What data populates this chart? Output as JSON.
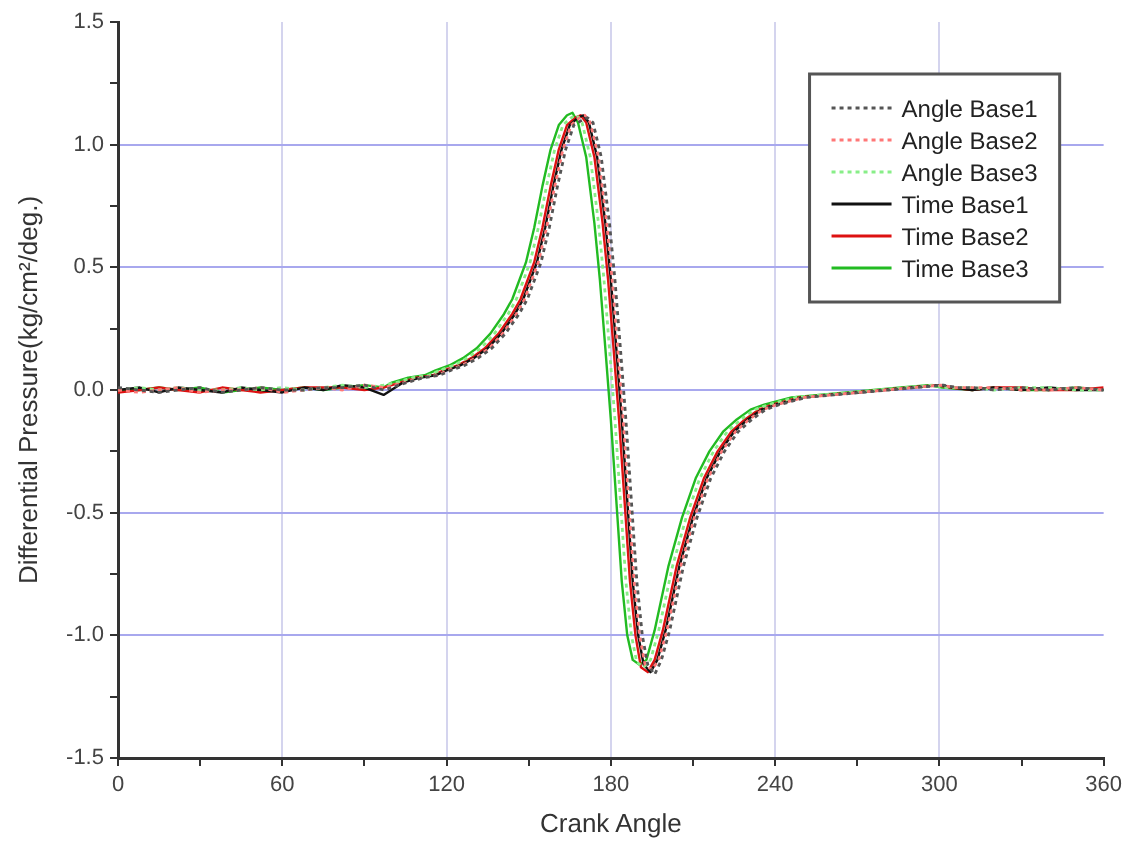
{
  "chart_data": {
    "type": "line",
    "xlabel": "Crank Angle",
    "ylabel": "Differential Pressure(kg/cm²/deg.)",
    "xlim": [
      0,
      360
    ],
    "ylim": [
      -1.5,
      1.5
    ],
    "xticks": [
      0,
      {
        "value": 30,
        "label": null
      },
      60,
      {
        "value": 90,
        "label": null
      },
      120,
      {
        "value": 150,
        "label": null
      },
      180,
      {
        "value": 210,
        "label": null
      },
      240,
      {
        "value": 270,
        "label": null
      },
      300,
      {
        "value": 330,
        "label": null
      },
      360
    ],
    "yticks": [
      -1.5,
      {
        "value": -1.25,
        "label": null
      },
      {
        "value": -1,
        "label": "-1.0"
      },
      {
        "value": -0.75,
        "label": null
      },
      -0.5,
      {
        "value": -0.25,
        "label": null
      },
      {
        "value": 0,
        "label": "0.0"
      },
      {
        "value": 0.25,
        "label": null
      },
      0.5,
      {
        "value": 0.75,
        "label": null
      },
      {
        "value": 1,
        "label": "1.0"
      },
      {
        "value": 1.25,
        "label": null
      },
      1.5
    ],
    "grid": true,
    "legend": "top right",
    "marker": "none",
    "series": [
      {
        "name": "Angle Base1",
        "color": "#555555",
        "line_style": "dotted",
        "x": [
          0,
          8,
          15,
          22,
          30,
          38,
          45,
          52,
          60,
          68,
          75,
          82,
          90,
          97,
          105.5,
          111.5,
          117.5,
          121.5,
          126.5,
          131.5,
          136.5,
          141.5,
          146.5,
          149.5,
          151.5,
          154.5,
          157.5,
          160.5,
          163.5,
          166.5,
          169.5,
          171.5,
          173.5,
          176.5,
          179.5,
          181.5,
          183.5,
          185.5,
          187.5,
          189.5,
          191.5,
          193.5,
          196,
          198.5,
          201.5,
          206.5,
          211.5,
          216.5,
          221.5,
          226.5,
          231.5,
          236.5,
          241.5,
          251.5,
          261.5,
          271.5,
          281.5,
          291.5,
          301.5,
          306.5,
          312,
          320,
          330,
          340,
          350,
          360
        ],
        "values": [
          0.01,
          0,
          -0.01,
          0,
          0.01,
          -0.01,
          0,
          0.01,
          0,
          0,
          0.01,
          0.01,
          0.02,
          0,
          0.03,
          0.05,
          0.06,
          0.08,
          0.1,
          0.13,
          0.17,
          0.23,
          0.31,
          0.37,
          0.43,
          0.52,
          0.66,
          0.83,
          0.98,
          1.08,
          1.1,
          1.11,
          1.09,
          0.95,
          0.68,
          0.45,
          0.17,
          -0.12,
          -0.45,
          -0.78,
          -1,
          -1.12,
          -1.16,
          -1.1,
          -0.98,
          -0.72,
          -0.52,
          -0.36,
          -0.25,
          -0.17,
          -0.12,
          -0.08,
          -0.06,
          -0.03,
          -0.02,
          -0.01,
          0,
          0.01,
          0.02,
          0.01,
          0.01,
          0,
          0.01,
          0,
          0.01,
          0
        ]
      },
      {
        "name": "Angle Base2",
        "color": "#ff7777",
        "line_style": "dotted",
        "x": [
          0,
          8,
          15,
          22,
          30,
          38,
          45,
          52,
          60,
          68,
          75,
          82,
          90,
          97,
          104.5,
          110.5,
          116.5,
          120.5,
          125.5,
          130.5,
          135.5,
          140.5,
          145.5,
          148.5,
          150.5,
          153.5,
          156.5,
          159.5,
          162.5,
          165.5,
          168.5,
          170.5,
          172.5,
          175.5,
          178.5,
          180.5,
          182.5,
          184.5,
          186.5,
          188.5,
          190.5,
          192.5,
          195,
          197.5,
          200.5,
          205.5,
          210.5,
          215.5,
          220.5,
          225.5,
          230.5,
          235.5,
          240.5,
          250.5,
          260.5,
          270.5,
          280.5,
          290.5,
          300.5,
          305.5,
          312,
          320,
          330,
          340,
          350,
          360
        ],
        "values": [
          0,
          -0.01,
          0,
          0.01,
          -0.01,
          0,
          0,
          0.01,
          -0.01,
          0,
          0.01,
          0,
          0.02,
          0.01,
          0.03,
          0.05,
          0.06,
          0.08,
          0.1,
          0.13,
          0.17,
          0.23,
          0.31,
          0.37,
          0.43,
          0.52,
          0.66,
          0.83,
          0.98,
          1.08,
          1.11,
          1.12,
          1.09,
          0.95,
          0.68,
          0.45,
          0.17,
          -0.12,
          -0.45,
          -0.78,
          -1,
          -1.12,
          -1.14,
          -1.1,
          -0.98,
          -0.72,
          -0.52,
          -0.36,
          -0.25,
          -0.17,
          -0.12,
          -0.08,
          -0.06,
          -0.03,
          -0.02,
          -0.01,
          0,
          0.01,
          0.02,
          0.01,
          0.01,
          0.01,
          0,
          0,
          0.01,
          0
        ]
      },
      {
        "name": "Angle Base3",
        "color": "#88ee88",
        "line_style": "dotted",
        "x": [
          0,
          8,
          15,
          22,
          30,
          38,
          45,
          52,
          60,
          68,
          75,
          82,
          90,
          97,
          101.5,
          107.5,
          113.5,
          117.5,
          122.5,
          127.5,
          132.5,
          137.5,
          142.5,
          145.5,
          147.5,
          150.5,
          153.5,
          156.5,
          159.5,
          162.5,
          165.5,
          167.5,
          169.5,
          172.5,
          175.5,
          177.5,
          179.5,
          181.5,
          183.5,
          185.5,
          187.5,
          189.5,
          192,
          194.5,
          197.5,
          202.5,
          207.5,
          212.5,
          217.5,
          222.5,
          227.5,
          232.5,
          237.5,
          247.5,
          257.5,
          267.5,
          277.5,
          287.5,
          297.5,
          302.5,
          312,
          320,
          330,
          340,
          350,
          360
        ],
        "values": [
          0,
          0.01,
          0,
          0.01,
          0,
          0,
          0.01,
          0,
          0.01,
          0,
          0.01,
          0.02,
          0.01,
          0.02,
          0.03,
          0.05,
          0.06,
          0.08,
          0.1,
          0.13,
          0.17,
          0.23,
          0.31,
          0.37,
          0.43,
          0.52,
          0.66,
          0.83,
          0.98,
          1.08,
          1.11,
          1.12,
          1.09,
          0.95,
          0.68,
          0.45,
          0.17,
          -0.12,
          -0.45,
          -0.78,
          -1,
          -1.11,
          -1.13,
          -1.1,
          -0.98,
          -0.72,
          -0.52,
          -0.36,
          -0.25,
          -0.17,
          -0.12,
          -0.08,
          -0.06,
          -0.03,
          -0.02,
          -0.01,
          0,
          0.01,
          0.02,
          0.01,
          0.01,
          0,
          0.01,
          0.01,
          0,
          0
        ]
      },
      {
        "name": "Time Base1",
        "color": "#111111",
        "line_style": "solid",
        "x": [
          0,
          8,
          15,
          22,
          30,
          38,
          45,
          52,
          60,
          68,
          75,
          82,
          90,
          97,
          104,
          110,
          116,
          120,
          125,
          130,
          135,
          140,
          145,
          148,
          150,
          153,
          156,
          159,
          162,
          165,
          168,
          170,
          172,
          175,
          178,
          180,
          182,
          184,
          186,
          188,
          190,
          192,
          194.5,
          197,
          200,
          205,
          210,
          215,
          220,
          225,
          230,
          235,
          240,
          250,
          260,
          270,
          280,
          290,
          300,
          305,
          312,
          320,
          330,
          340,
          350,
          360
        ],
        "values": [
          0,
          0.01,
          -0.01,
          0.01,
          0,
          -0.01,
          0.01,
          0,
          -0.01,
          0.01,
          0,
          0.02,
          0.01,
          -0.02,
          0.03,
          0.05,
          0.06,
          0.08,
          0.1,
          0.13,
          0.17,
          0.23,
          0.31,
          0.37,
          0.43,
          0.52,
          0.66,
          0.83,
          0.98,
          1.08,
          1.11,
          1.12,
          1.09,
          0.95,
          0.68,
          0.45,
          0.17,
          -0.12,
          -0.45,
          -0.78,
          -1,
          -1.12,
          -1.15,
          -1.1,
          -0.98,
          -0.72,
          -0.52,
          -0.36,
          -0.25,
          -0.17,
          -0.12,
          -0.08,
          -0.06,
          -0.03,
          -0.02,
          -0.01,
          0,
          0.01,
          0.02,
          0.01,
          0,
          0.01,
          0,
          0.01,
          0,
          0
        ]
      },
      {
        "name": "Time Base2",
        "color": "#dd1111",
        "line_style": "solid",
        "x": [
          0,
          8,
          15,
          22,
          30,
          38,
          45,
          52,
          60,
          68,
          75,
          82,
          90,
          97,
          103,
          109,
          115,
          119,
          124,
          129,
          134,
          139,
          144,
          147,
          149,
          152,
          155,
          158,
          161,
          164,
          167,
          169,
          171,
          174,
          177,
          179,
          181,
          183,
          185,
          187,
          189,
          191,
          193.5,
          196,
          199,
          204,
          209,
          214,
          219,
          224,
          229,
          234,
          239,
          249,
          259,
          269,
          279,
          289,
          299,
          304,
          312,
          320,
          330,
          340,
          350,
          360
        ],
        "values": [
          -0.01,
          0,
          0.01,
          0,
          -0.01,
          0.01,
          0,
          -0.01,
          0,
          0.01,
          0.01,
          0.01,
          0,
          0.01,
          0.03,
          0.05,
          0.06,
          0.08,
          0.1,
          0.13,
          0.17,
          0.23,
          0.31,
          0.37,
          0.43,
          0.52,
          0.66,
          0.83,
          0.98,
          1.08,
          1.11,
          1.12,
          1.09,
          0.95,
          0.68,
          0.45,
          0.17,
          -0.12,
          -0.45,
          -0.78,
          -1,
          -1.13,
          -1.15,
          -1.1,
          -0.98,
          -0.72,
          -0.52,
          -0.36,
          -0.25,
          -0.17,
          -0.12,
          -0.08,
          -0.06,
          -0.03,
          -0.02,
          -0.01,
          0,
          0.01,
          0.02,
          0.01,
          0,
          0.01,
          0.01,
          0,
          0,
          0.01
        ]
      },
      {
        "name": "Time Base3",
        "color": "#22bb22",
        "line_style": "solid",
        "x": [
          0,
          8,
          15,
          22,
          30,
          38,
          45,
          52,
          60,
          68,
          75,
          82,
          90,
          97,
          100,
          106,
          112,
          116,
          121,
          126,
          131,
          136,
          141,
          144,
          146,
          149,
          152,
          155,
          158,
          161,
          164,
          166,
          168,
          171,
          174,
          176,
          178,
          180,
          182,
          184,
          186,
          188,
          190.5,
          193,
          196,
          201,
          206,
          211,
          216,
          221,
          226,
          231,
          236,
          246,
          256,
          266,
          276,
          286,
          296,
          301,
          312,
          320,
          330,
          340,
          350,
          360
        ],
        "values": [
          0,
          0,
          0.01,
          0,
          0.01,
          -0.01,
          0,
          0.01,
          0,
          0.01,
          0,
          0.01,
          0.02,
          0.01,
          0.03,
          0.05,
          0.06,
          0.08,
          0.1,
          0.13,
          0.17,
          0.23,
          0.31,
          0.37,
          0.43,
          0.52,
          0.66,
          0.83,
          0.98,
          1.08,
          1.12,
          1.13,
          1.09,
          0.95,
          0.68,
          0.45,
          0.17,
          -0.12,
          -0.45,
          -0.78,
          -1,
          -1.1,
          -1.12,
          -1.1,
          -0.98,
          -0.72,
          -0.52,
          -0.36,
          -0.25,
          -0.17,
          -0.12,
          -0.08,
          -0.06,
          -0.03,
          -0.02,
          -0.01,
          0,
          0.01,
          0.02,
          0.01,
          0,
          0.01,
          0,
          0,
          0.01,
          0
        ]
      }
    ]
  }
}
